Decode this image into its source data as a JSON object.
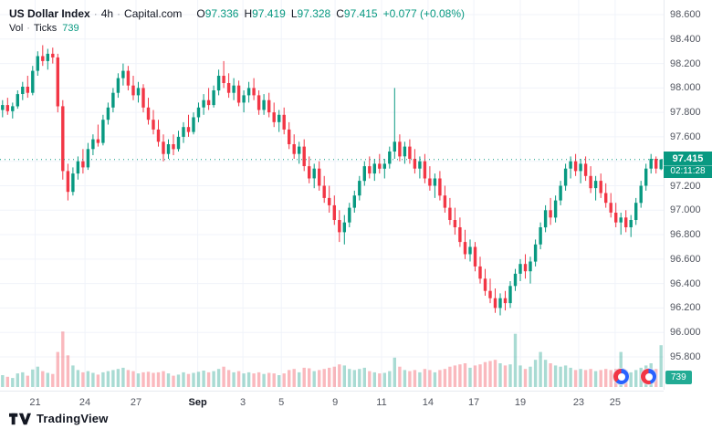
{
  "header": {
    "title": {
      "symbol": "US Dollar Index",
      "sep": "·",
      "interval": "4h",
      "source": "Capital.com"
    },
    "ohlc": {
      "o_label": "O",
      "o_value": "97.336",
      "h_label": "H",
      "h_value": "97.419",
      "l_label": "L",
      "l_value": "97.328",
      "c_label": "C",
      "c_value": "97.415",
      "change_value": "+0.077 (+0.08%)"
    },
    "volume_row": {
      "label": "Vol",
      "sep": "·",
      "type": "Ticks",
      "value": "739"
    }
  },
  "price_axis": {
    "ticks": [
      "98.600",
      "98.400",
      "98.200",
      "98.000",
      "97.800",
      "97.600",
      "97.400",
      "97.200",
      "97.000",
      "96.800",
      "96.600",
      "96.400",
      "96.200",
      "96.000",
      "95.800"
    ],
    "price_badge": "97.415",
    "countdown_badge": "02:11:28",
    "volume_badge": "739"
  },
  "time_axis": {
    "ticks": [
      {
        "label": "21",
        "pos": 0.053
      },
      {
        "label": "24",
        "pos": 0.128
      },
      {
        "label": "27",
        "pos": 0.205
      },
      {
        "label": "Sep",
        "pos": 0.298,
        "strong": true
      },
      {
        "label": "3",
        "pos": 0.366
      },
      {
        "label": "5",
        "pos": 0.424
      },
      {
        "label": "9",
        "pos": 0.505
      },
      {
        "label": "11",
        "pos": 0.575
      },
      {
        "label": "14",
        "pos": 0.645
      },
      {
        "label": "17",
        "pos": 0.714
      },
      {
        "label": "19",
        "pos": 0.784
      },
      {
        "label": "23",
        "pos": 0.872
      },
      {
        "label": "25",
        "pos": 0.927
      }
    ]
  },
  "footer": {
    "brand": "TradingView"
  },
  "chart_data": {
    "type": "candlestick",
    "title": "US Dollar Index · 4h · Capital.com",
    "interval": "4h",
    "price_axis_range": [
      95.8,
      98.6
    ],
    "price_ticks": [
      98.6,
      98.4,
      98.2,
      98.0,
      97.8,
      97.6,
      97.4,
      97.2,
      97.0,
      96.8,
      96.6,
      96.4,
      96.2,
      96.0,
      95.8
    ],
    "current_price": 97.415,
    "countdown": "02:11:28",
    "current_bar_ohlc": {
      "open": 97.336,
      "high": 97.419,
      "low": 97.328,
      "close": 97.415,
      "change": 0.077,
      "change_pct": 0.08
    },
    "volume_pane_unit": "ticks",
    "current_volume_ticks": 739,
    "volume_scale_max": 1000,
    "legend_position": "top-left",
    "grid": true,
    "candle_format": "[open, high, low, close, volume_ticks]",
    "candles": [
      [
        97.82,
        97.9,
        97.76,
        97.86,
        210
      ],
      [
        97.86,
        97.92,
        97.78,
        97.81,
        180
      ],
      [
        97.81,
        97.88,
        97.75,
        97.85,
        160
      ],
      [
        97.85,
        97.98,
        97.83,
        97.95,
        240
      ],
      [
        97.95,
        98.05,
        97.9,
        98.01,
        260
      ],
      [
        98.01,
        98.1,
        97.92,
        97.96,
        200
      ],
      [
        97.96,
        98.18,
        97.94,
        98.14,
        310
      ],
      [
        98.14,
        98.3,
        98.1,
        98.26,
        360
      ],
      [
        98.26,
        98.35,
        98.18,
        98.22,
        280
      ],
      [
        98.22,
        98.32,
        98.15,
        98.28,
        250
      ],
      [
        98.28,
        98.33,
        98.2,
        98.25,
        230
      ],
      [
        98.25,
        98.28,
        97.8,
        97.85,
        620
      ],
      [
        97.85,
        97.9,
        97.25,
        97.32,
        980
      ],
      [
        97.32,
        97.38,
        97.08,
        97.15,
        560
      ],
      [
        97.15,
        97.35,
        97.12,
        97.3,
        380
      ],
      [
        97.3,
        97.44,
        97.25,
        97.4,
        300
      ],
      [
        97.4,
        97.5,
        97.3,
        97.35,
        260
      ],
      [
        97.35,
        97.55,
        97.33,
        97.5,
        280
      ],
      [
        97.5,
        97.62,
        97.45,
        97.58,
        250
      ],
      [
        97.58,
        97.7,
        97.52,
        97.55,
        220
      ],
      [
        97.55,
        97.78,
        97.53,
        97.74,
        260
      ],
      [
        97.74,
        97.88,
        97.7,
        97.84,
        280
      ],
      [
        97.84,
        98.0,
        97.8,
        97.96,
        300
      ],
      [
        97.96,
        98.12,
        97.92,
        98.08,
        320
      ],
      [
        98.08,
        98.2,
        98.02,
        98.14,
        340
      ],
      [
        98.14,
        98.18,
        97.98,
        98.02,
        300
      ],
      [
        98.02,
        98.1,
        97.9,
        97.94,
        280
      ],
      [
        97.94,
        98.05,
        97.88,
        98.0,
        240
      ],
      [
        98.0,
        98.03,
        97.8,
        97.84,
        260
      ],
      [
        97.84,
        97.92,
        97.7,
        97.74,
        270
      ],
      [
        97.74,
        97.82,
        97.62,
        97.66,
        250
      ],
      [
        97.66,
        97.74,
        97.52,
        97.56,
        260
      ],
      [
        97.56,
        97.62,
        97.4,
        97.46,
        280
      ],
      [
        97.46,
        97.58,
        97.42,
        97.54,
        240
      ],
      [
        97.54,
        97.62,
        97.45,
        97.5,
        200
      ],
      [
        97.5,
        97.65,
        97.48,
        97.6,
        220
      ],
      [
        97.6,
        97.72,
        97.55,
        97.68,
        260
      ],
      [
        97.68,
        97.78,
        97.6,
        97.64,
        230
      ],
      [
        97.64,
        97.8,
        97.62,
        97.76,
        250
      ],
      [
        97.76,
        97.88,
        97.72,
        97.84,
        270
      ],
      [
        97.84,
        97.95,
        97.78,
        97.9,
        290
      ],
      [
        97.9,
        98.0,
        97.82,
        97.86,
        260
      ],
      [
        97.86,
        98.02,
        97.84,
        97.98,
        280
      ],
      [
        97.98,
        98.15,
        97.94,
        98.1,
        320
      ],
      [
        98.1,
        98.22,
        98.0,
        98.04,
        360
      ],
      [
        98.04,
        98.12,
        97.92,
        97.96,
        300
      ],
      [
        97.96,
        98.08,
        97.9,
        98.02,
        260
      ],
      [
        98.02,
        98.06,
        97.85,
        97.88,
        280
      ],
      [
        97.88,
        97.98,
        97.8,
        97.94,
        240
      ],
      [
        97.94,
        98.05,
        97.88,
        98.0,
        260
      ],
      [
        98.0,
        98.08,
        97.9,
        97.94,
        240
      ],
      [
        97.94,
        97.98,
        97.78,
        97.82,
        260
      ],
      [
        97.82,
        97.95,
        97.78,
        97.9,
        230
      ],
      [
        97.9,
        97.96,
        97.76,
        97.8,
        250
      ],
      [
        97.8,
        97.88,
        97.68,
        97.72,
        240
      ],
      [
        97.72,
        97.82,
        97.64,
        97.78,
        210
      ],
      [
        97.78,
        97.84,
        97.62,
        97.66,
        240
      ],
      [
        97.66,
        97.72,
        97.5,
        97.54,
        300
      ],
      [
        97.54,
        97.62,
        97.42,
        97.46,
        320
      ],
      [
        97.46,
        97.56,
        97.38,
        97.52,
        260
      ],
      [
        97.52,
        97.58,
        97.32,
        97.36,
        340
      ],
      [
        97.36,
        97.44,
        97.22,
        97.26,
        330
      ],
      [
        97.26,
        97.38,
        97.18,
        97.34,
        280
      ],
      [
        97.34,
        97.4,
        97.16,
        97.2,
        300
      ],
      [
        97.2,
        97.28,
        97.06,
        97.1,
        320
      ],
      [
        97.1,
        97.2,
        96.98,
        97.04,
        340
      ],
      [
        97.04,
        97.12,
        96.88,
        96.92,
        360
      ],
      [
        96.92,
        97.0,
        96.74,
        96.82,
        400
      ],
      [
        96.82,
        96.96,
        96.72,
        96.9,
        380
      ],
      [
        96.9,
        97.06,
        96.86,
        97.02,
        320
      ],
      [
        97.02,
        97.16,
        96.98,
        97.12,
        300
      ],
      [
        97.12,
        97.28,
        97.08,
        97.24,
        320
      ],
      [
        97.24,
        97.4,
        97.2,
        97.36,
        340
      ],
      [
        97.36,
        97.44,
        97.26,
        97.3,
        280
      ],
      [
        97.3,
        97.42,
        97.24,
        97.38,
        260
      ],
      [
        97.38,
        97.46,
        97.3,
        97.34,
        240
      ],
      [
        97.34,
        97.42,
        97.26,
        97.38,
        250
      ],
      [
        97.38,
        97.52,
        97.34,
        97.48,
        280
      ],
      [
        97.48,
        98.0,
        97.42,
        97.56,
        520
      ],
      [
        97.56,
        97.62,
        97.4,
        97.44,
        360
      ],
      [
        97.44,
        97.56,
        97.38,
        97.52,
        300
      ],
      [
        97.52,
        97.58,
        97.38,
        97.42,
        280
      ],
      [
        97.42,
        97.5,
        97.3,
        97.34,
        300
      ],
      [
        97.34,
        97.44,
        97.26,
        97.4,
        260
      ],
      [
        97.4,
        97.46,
        97.22,
        97.26,
        320
      ],
      [
        97.26,
        97.36,
        97.16,
        97.2,
        300
      ],
      [
        97.2,
        97.3,
        97.1,
        97.26,
        260
      ],
      [
        97.26,
        97.32,
        97.08,
        97.12,
        300
      ],
      [
        97.12,
        97.2,
        96.98,
        97.02,
        320
      ],
      [
        97.02,
        97.1,
        96.88,
        96.92,
        360
      ],
      [
        96.92,
        97.02,
        96.8,
        96.86,
        380
      ],
      [
        96.86,
        96.94,
        96.7,
        96.74,
        400
      ],
      [
        96.74,
        96.84,
        96.6,
        96.64,
        420
      ],
      [
        96.64,
        96.76,
        96.58,
        96.7,
        340
      ],
      [
        96.7,
        96.74,
        96.5,
        96.54,
        380
      ],
      [
        96.54,
        96.62,
        96.4,
        96.44,
        400
      ],
      [
        96.44,
        96.52,
        96.3,
        96.34,
        440
      ],
      [
        96.34,
        96.44,
        96.24,
        96.28,
        460
      ],
      [
        96.28,
        96.36,
        96.16,
        96.2,
        480
      ],
      [
        96.2,
        96.32,
        96.14,
        96.28,
        420
      ],
      [
        96.28,
        96.34,
        96.18,
        96.24,
        380
      ],
      [
        96.24,
        96.42,
        96.2,
        96.38,
        400
      ],
      [
        96.38,
        96.52,
        96.34,
        96.48,
        940
      ],
      [
        96.48,
        96.6,
        96.42,
        96.56,
        380
      ],
      [
        96.56,
        96.64,
        96.44,
        96.5,
        320
      ],
      [
        96.5,
        96.62,
        96.4,
        96.58,
        360
      ],
      [
        96.58,
        96.76,
        96.54,
        96.72,
        480
      ],
      [
        96.72,
        96.9,
        96.68,
        96.86,
        620
      ],
      [
        96.86,
        97.04,
        96.82,
        97.0,
        480
      ],
      [
        97.0,
        97.1,
        96.88,
        96.94,
        420
      ],
      [
        96.94,
        97.12,
        96.9,
        97.08,
        380
      ],
      [
        97.08,
        97.24,
        97.04,
        97.2,
        360
      ],
      [
        97.2,
        97.38,
        97.16,
        97.34,
        380
      ],
      [
        97.34,
        97.44,
        97.26,
        97.4,
        340
      ],
      [
        97.4,
        97.46,
        97.28,
        97.32,
        300
      ],
      [
        97.32,
        97.42,
        97.22,
        97.38,
        320
      ],
      [
        97.38,
        97.44,
        97.24,
        97.28,
        300
      ],
      [
        97.28,
        97.36,
        97.14,
        97.18,
        320
      ],
      [
        97.18,
        97.28,
        97.08,
        97.24,
        280
      ],
      [
        97.24,
        97.3,
        97.1,
        97.14,
        300
      ],
      [
        97.14,
        97.22,
        97.02,
        97.06,
        320
      ],
      [
        97.06,
        97.14,
        96.94,
        96.98,
        300
      ],
      [
        96.98,
        97.06,
        96.86,
        96.9,
        320
      ],
      [
        96.9,
        96.98,
        96.8,
        96.94,
        620
      ],
      [
        96.94,
        97.0,
        96.82,
        96.86,
        300
      ],
      [
        96.86,
        96.96,
        96.78,
        96.92,
        260
      ],
      [
        96.92,
        97.1,
        96.88,
        97.06,
        300
      ],
      [
        97.06,
        97.24,
        97.02,
        97.2,
        340
      ],
      [
        97.2,
        97.38,
        97.16,
        97.34,
        380
      ],
      [
        97.34,
        97.46,
        97.3,
        97.42,
        420
      ],
      [
        97.42,
        97.44,
        97.3,
        97.34,
        320
      ],
      [
        97.336,
        97.419,
        97.328,
        97.415,
        739
      ]
    ],
    "colors": {
      "up": "#089981",
      "down": "#f23645",
      "vol_up": "rgba(8,153,129,0.35)",
      "vol_down": "rgba(242,54,69,0.35)",
      "grid": "#f0f3fa",
      "price_line": "#089981",
      "badge_bg": "#089981"
    }
  }
}
